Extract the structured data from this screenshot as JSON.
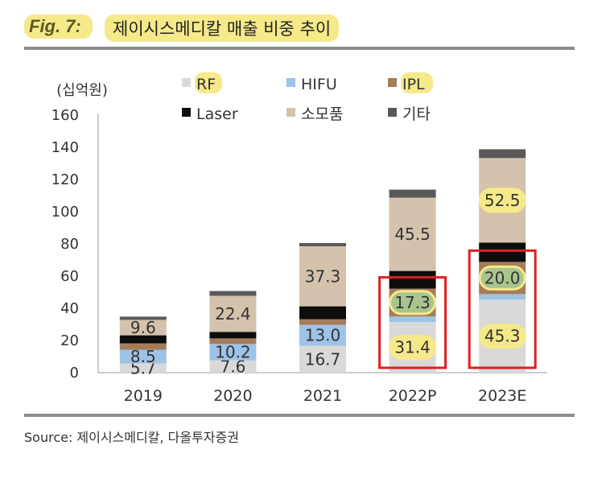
{
  "figure": {
    "label": "Fig. 7:",
    "title": "제이시스메디칼 매출 비중 추이",
    "source": "Source:  제이시스메디칼, 다올투자증권"
  },
  "chart_data": {
    "type": "bar",
    "stacked": true,
    "unit_label": "(십억원)",
    "categories": [
      "2019",
      "2020",
      "2021",
      "2022P",
      "2023E"
    ],
    "ylim": [
      0,
      160
    ],
    "yticks": [
      0,
      20,
      40,
      60,
      80,
      100,
      120,
      140,
      160
    ],
    "grid": false,
    "legend_position": "top",
    "series": [
      {
        "name": "RF",
        "color": "#d9d9d9",
        "values": [
          5.7,
          7.6,
          16.7,
          31.4,
          45.3
        ],
        "labels": [
          "5.7",
          "7.6",
          "16.7",
          "31.4",
          "45.3"
        ]
      },
      {
        "name": "HIFU",
        "color": "#9dc3e6",
        "values": [
          8.5,
          10.2,
          13.0,
          3.5,
          3.5
        ],
        "labels": [
          "8.5",
          "10.2",
          "13.0",
          "",
          ""
        ]
      },
      {
        "name": "IPL",
        "color": "#a57c5a",
        "values": [
          4.0,
          3.5,
          3.5,
          17.3,
          20.0
        ],
        "labels": [
          "",
          "",
          "",
          "17.3",
          "20.0"
        ]
      },
      {
        "name": "Laser",
        "color": "#0d0d0d",
        "values": [
          5.0,
          4.0,
          8.0,
          11.0,
          12.0
        ],
        "labels": [
          "",
          "",
          "",
          "",
          ""
        ]
      },
      {
        "name": "소모품",
        "color": "#d5c2ad",
        "values": [
          9.6,
          22.4,
          37.3,
          45.5,
          52.5
        ],
        "labels": [
          "9.6",
          "22.4",
          "37.3",
          "45.5",
          "52.5"
        ]
      },
      {
        "name": "기타",
        "color": "#595959",
        "values": [
          2.0,
          3.0,
          2.0,
          5.0,
          5.5
        ],
        "labels": [
          "",
          "",
          "",
          "",
          ""
        ]
      }
    ],
    "highlighted_labels": [
      "31.4",
      "17.3",
      "45.3",
      "20.0",
      "52.5"
    ],
    "highlighted_series_colors": {
      "IPL": "#a9c48e"
    },
    "highlight_color": "#f6e98a",
    "boxed_categories": [
      "2022P",
      "2023E"
    ],
    "box_color": "#e02020"
  }
}
